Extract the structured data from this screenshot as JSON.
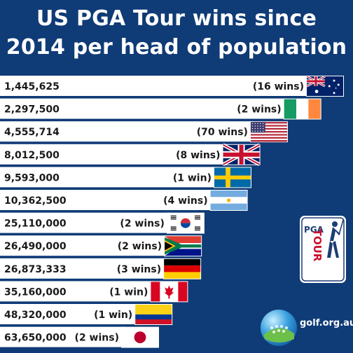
{
  "title_line1": "US PGA Tour wins since",
  "title_line2": "2014 per head of population",
  "chart_data": {
    "type": "bar",
    "orientation": "horizontal",
    "title": "US PGA Tour wins since 2014 per head of population",
    "categories": [
      "Australia",
      "Ireland",
      "United States",
      "United Kingdom",
      "Sweden",
      "Argentina",
      "South Korea",
      "South Africa",
      "Germany",
      "Canada",
      "Colombia",
      "Japan"
    ],
    "values": [
      1445625,
      2297500,
      4555714,
      8012500,
      9593000,
      10362500,
      25110000,
      26490000,
      26873333,
      35160000,
      48320000,
      63650000
    ],
    "value_labels": [
      "1,445,625",
      "2,297,500",
      "4,555,714",
      "8,012,500",
      "9,593,000",
      "10,362,500",
      "25,110,000",
      "26,490,000",
      "26,873,333",
      "35,160,000",
      "48,320,000",
      "63,650,000"
    ],
    "win_labels": [
      "(16 wins)",
      "(2 wins)",
      "(70 wins)",
      "(8 wins)",
      "(1 win)",
      "(4 wins)",
      "(2 wins)",
      "(2 wins)",
      "(3 wins)",
      "(1 win)",
      "(1 win)",
      "(2 wins)"
    ],
    "bar_color": "#ffffff",
    "background_color": "#0f3b76"
  },
  "logo": {
    "line1": "PGA",
    "line2": "TOUR"
  },
  "site": "golf.org.au"
}
